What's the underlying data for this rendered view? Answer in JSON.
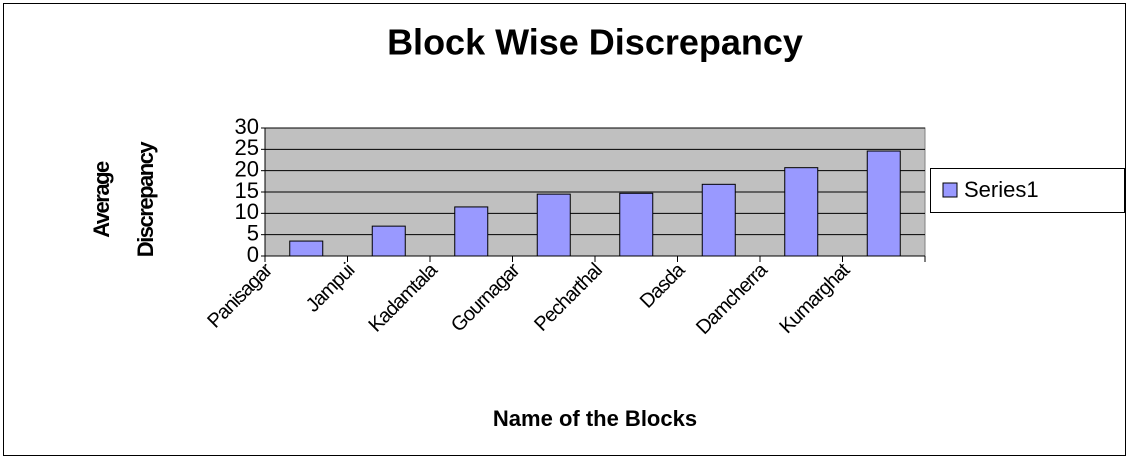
{
  "chart_data": {
    "type": "bar",
    "title": "Block Wise Discrepancy",
    "x_label": "Name of the Blocks",
    "y_label": "Average Discrepancy",
    "categories": [
      "Panisagar",
      "Jampui",
      "Kadamtala",
      "Gournagar",
      "Pecharthal",
      "Dasda",
      "Damcherra",
      "Kumarghat"
    ],
    "series": [
      {
        "name": "Series1",
        "color": "#9999ff",
        "values": [
          3.5,
          7,
          11.5,
          14.5,
          14.7,
          16.8,
          20.7,
          24.6
        ]
      }
    ],
    "ylim": [
      0,
      30
    ],
    "yticks": [
      0,
      5,
      10,
      15,
      20,
      25,
      30
    ],
    "grid": true,
    "legend": "right"
  }
}
